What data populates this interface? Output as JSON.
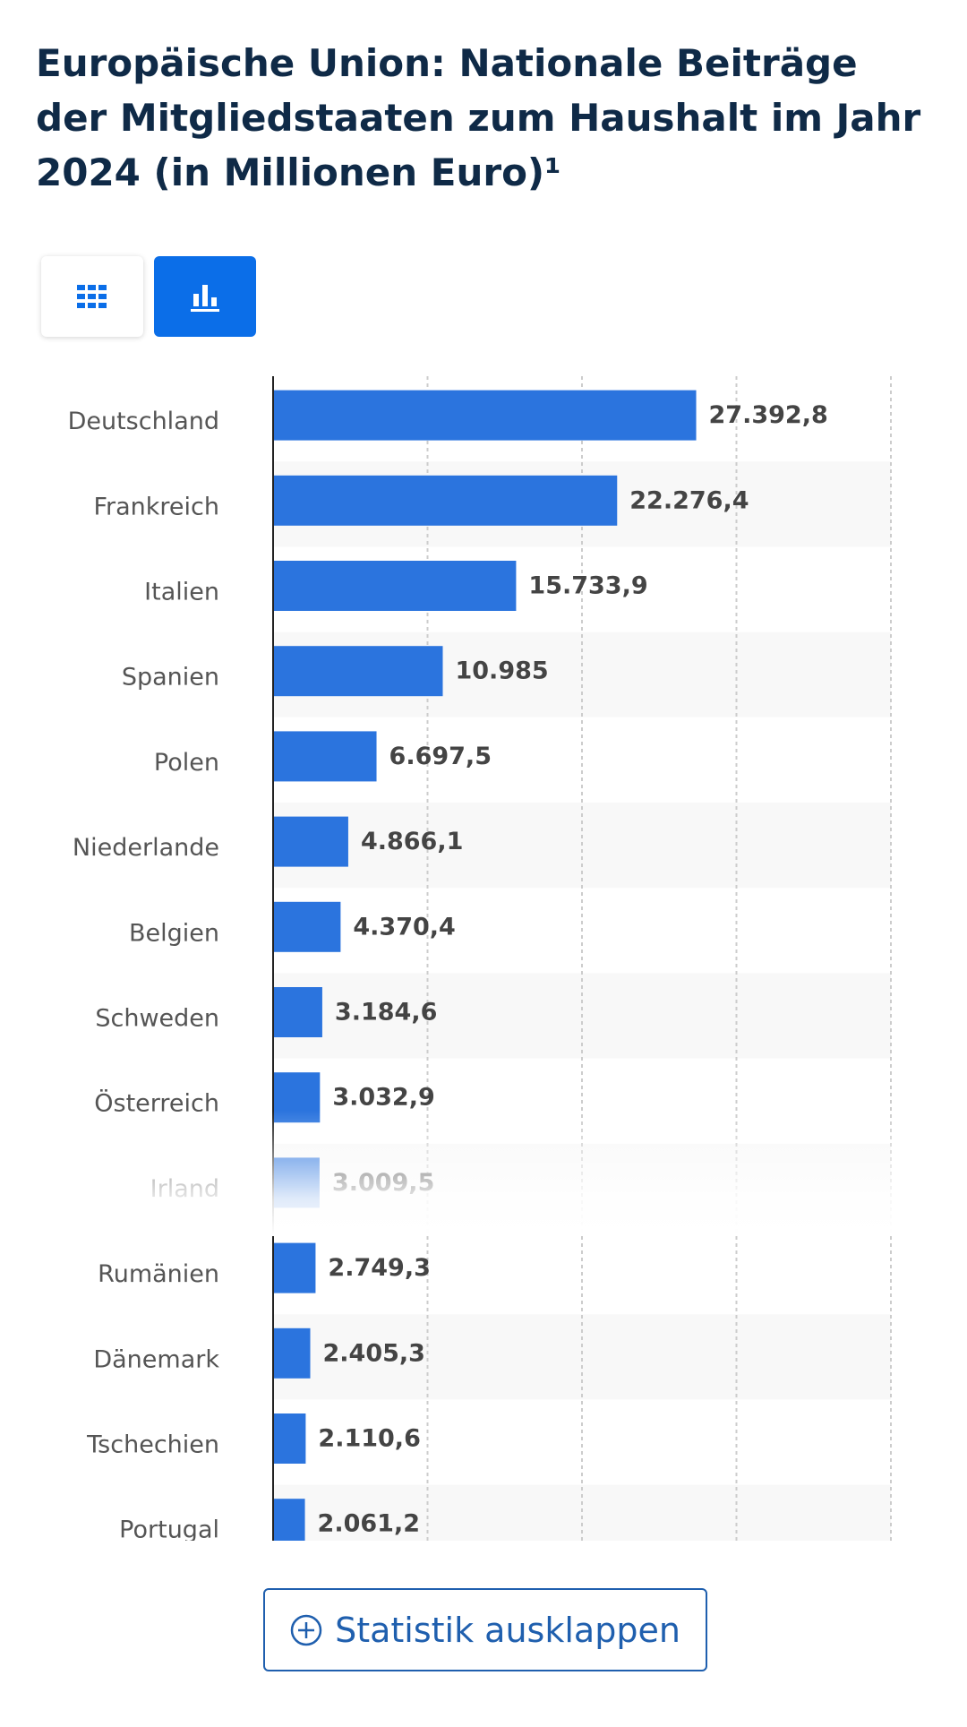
{
  "header": {
    "title": "Europäische Union: Nationale Beiträge der Mitgliedstaaten zum Haushalt im Jahr 2024 (in Millionen Euro)¹"
  },
  "view_toggle": {
    "table_icon": "grid-icon",
    "chart_icon": "bar-chart-icon",
    "active": "chart",
    "active_color": "#0b6ee8"
  },
  "chart_data": {
    "type": "bar",
    "orientation": "horizontal",
    "title": "Europäische Union: Nationale Beiträge der Mitgliedstaaten zum Haushalt im Jahr 2024 (in Millionen Euro)¹",
    "categories": [
      "Deutschland",
      "Frankreich",
      "Italien",
      "Spanien",
      "Polen",
      "Niederlande",
      "Belgien",
      "Schweden",
      "Österreich",
      "Irland",
      "Rumänien",
      "Dänemark",
      "Tschechien",
      "Portugal"
    ],
    "values": [
      27392.8,
      22276.4,
      15733.9,
      10985,
      6697.5,
      4866.1,
      4370.4,
      3184.6,
      3032.9,
      3009.5,
      2749.3,
      2405.3,
      2110.6,
      2061.2
    ],
    "value_labels": [
      "27.392,8",
      "22.276,4",
      "15.733,9",
      "10.985",
      "6.697,5",
      "4.866,1",
      "4.370,4",
      "3.184,6",
      "3.032,9",
      "3.009,5",
      "2.749,3",
      "2.405,3",
      "2.110,6",
      "2.061,2"
    ],
    "xlim": [
      0,
      40000
    ],
    "grid": true,
    "bar_color": "#2b74de"
  },
  "footer": {
    "expand_label": "Statistik ausklappen",
    "expand_icon": "plus-circle-icon"
  }
}
